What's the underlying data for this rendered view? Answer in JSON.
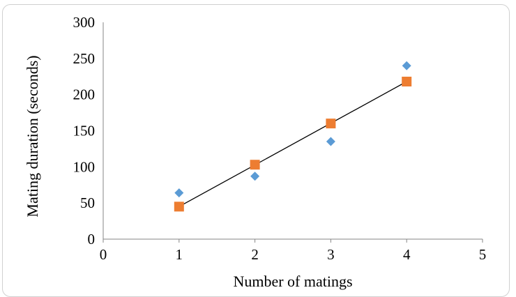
{
  "chart_data": {
    "type": "scatter",
    "xlabel": "Number of matings",
    "ylabel": "Mating duration (seconds)",
    "xlim": [
      0,
      5
    ],
    "ylim": [
      0,
      300
    ],
    "x_ticks": [
      "0",
      "1",
      "2",
      "3",
      "4",
      "5"
    ],
    "y_ticks": [
      "0",
      "50",
      "100",
      "150",
      "200",
      "250",
      "300"
    ],
    "grid": false,
    "legend": "none",
    "series": [
      {
        "marker": "diamond",
        "color": "#5b9bd5",
        "points": [
          {
            "x": 1,
            "y": 64
          },
          {
            "x": 2,
            "y": 87
          },
          {
            "x": 3,
            "y": 135
          },
          {
            "x": 4,
            "y": 240
          }
        ]
      },
      {
        "marker": "square",
        "color": "#ed7d31",
        "points": [
          {
            "x": 1,
            "y": 45
          },
          {
            "x": 2,
            "y": 103
          },
          {
            "x": 3,
            "y": 160
          },
          {
            "x": 4,
            "y": 218
          }
        ]
      }
    ],
    "trendline": {
      "color": "#000000",
      "from": {
        "x": 1,
        "y": 45
      },
      "to": {
        "x": 4,
        "y": 218
      }
    }
  }
}
